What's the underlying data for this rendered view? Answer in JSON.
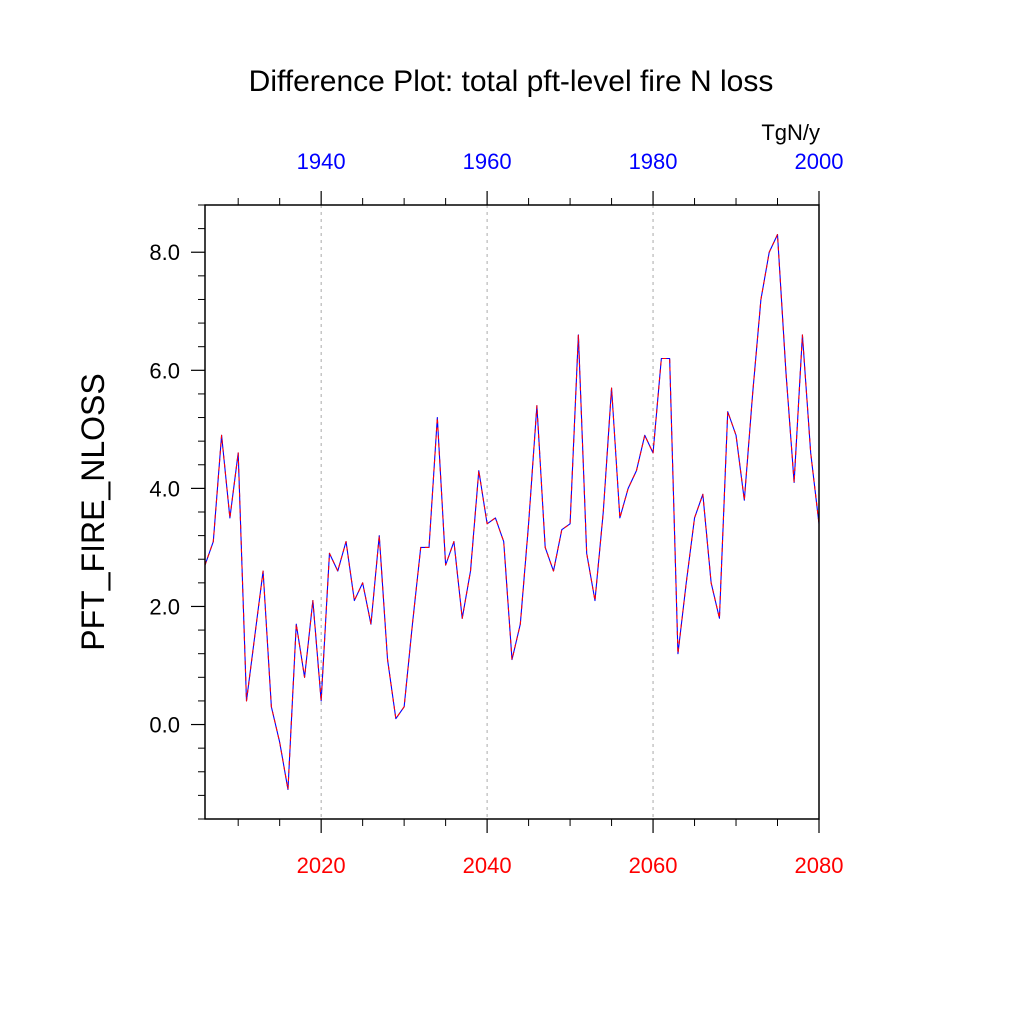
{
  "chart_data": {
    "type": "line",
    "title": "Difference Plot: total pft-level fire N loss",
    "units": "TgN/y",
    "ylabel": "PFT_FIRE_NLOSS",
    "ylim": [
      -1.6,
      8.8
    ],
    "yticks": [
      0.0,
      2.0,
      4.0,
      6.0,
      8.0
    ],
    "ytick_labels": [
      "0.0",
      "2.0",
      "4.0",
      "6.0",
      "8.0"
    ],
    "bottom_axis": {
      "xlim": [
        2006,
        2080
      ],
      "ticks": [
        2020,
        2040,
        2060,
        2080
      ],
      "tick_labels": [
        "2020",
        "2040",
        "2060",
        "2080"
      ],
      "color": "#ff0000"
    },
    "top_axis": {
      "xlim": [
        1926,
        2000
      ],
      "ticks": [
        1940,
        1960,
        1980,
        2000
      ],
      "tick_labels": [
        "1940",
        "1960",
        "1980",
        "2000"
      ],
      "color": "#0000ff"
    },
    "grid": "vertical dotted at bottom-axis major ticks",
    "series": [
      {
        "color_a": "#0000ff",
        "color_b": "#ff0000",
        "style": "dashed two-color",
        "x": [
          2006,
          2007,
          2008,
          2009,
          2010,
          2011,
          2012,
          2013,
          2014,
          2015,
          2016,
          2017,
          2018,
          2019,
          2020,
          2021,
          2022,
          2023,
          2024,
          2025,
          2026,
          2027,
          2028,
          2029,
          2030,
          2031,
          2032,
          2033,
          2034,
          2035,
          2036,
          2037,
          2038,
          2039,
          2040,
          2041,
          2042,
          2043,
          2044,
          2045,
          2046,
          2047,
          2048,
          2049,
          2050,
          2051,
          2052,
          2053,
          2054,
          2055,
          2056,
          2057,
          2058,
          2059,
          2060,
          2061,
          2062,
          2063,
          2064,
          2065,
          2066,
          2067,
          2068,
          2069,
          2070,
          2071,
          2072,
          2073,
          2074,
          2075,
          2076,
          2077,
          2078,
          2079,
          2080
        ],
        "values": [
          2.7,
          3.1,
          4.9,
          3.5,
          4.6,
          0.4,
          1.5,
          2.6,
          0.3,
          -0.3,
          -1.1,
          1.7,
          0.8,
          2.1,
          0.4,
          2.9,
          2.6,
          3.1,
          2.1,
          2.4,
          1.7,
          3.2,
          1.1,
          0.1,
          0.3,
          1.7,
          3.0,
          3.0,
          5.2,
          2.7,
          3.1,
          1.8,
          2.6,
          4.3,
          3.4,
          3.5,
          3.1,
          1.1,
          1.7,
          3.4,
          5.4,
          3.0,
          2.6,
          3.3,
          3.4,
          6.6,
          2.9,
          2.1,
          3.6,
          5.7,
          3.5,
          4.0,
          4.3,
          4.9,
          4.6,
          6.2,
          6.2,
          1.2,
          2.4,
          3.5,
          3.9,
          2.4,
          1.8,
          5.3,
          4.9,
          3.8,
          5.6,
          7.2,
          8.0,
          8.3,
          6.0,
          4.1,
          6.6,
          4.6,
          3.4
        ]
      }
    ]
  }
}
